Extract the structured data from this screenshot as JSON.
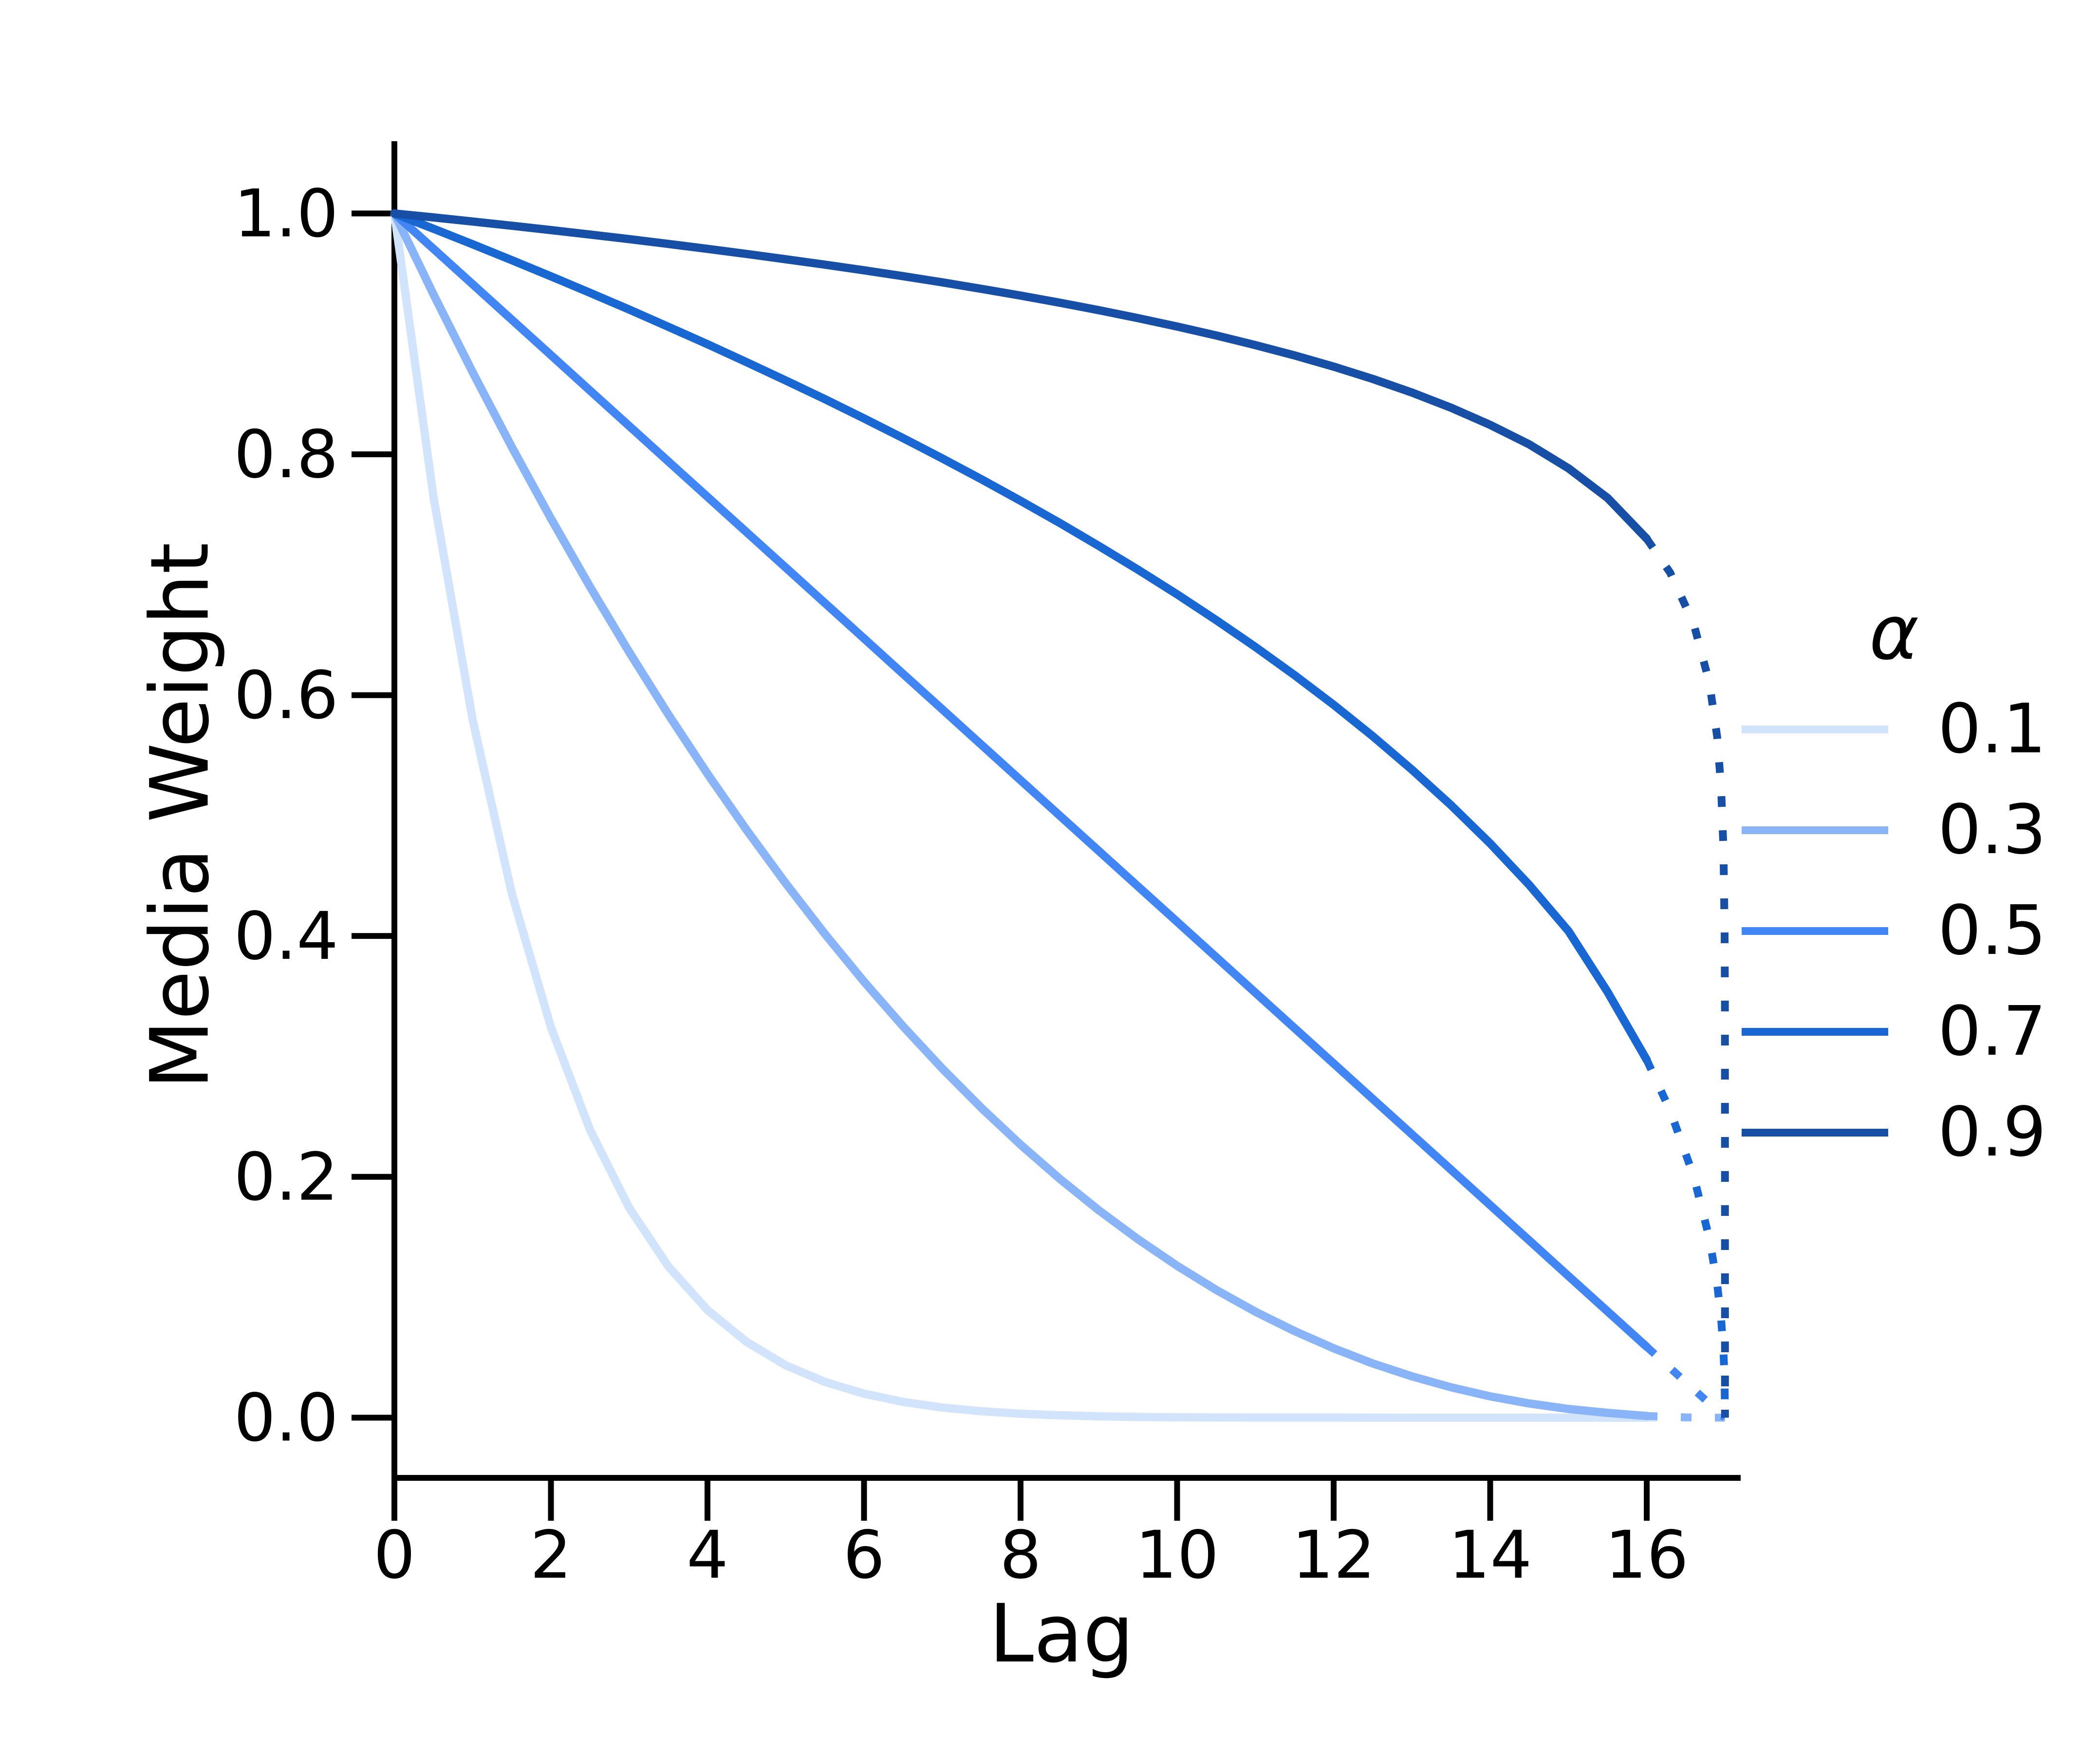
{
  "chart_data": {
    "type": "line",
    "title": "",
    "xlabel": "Lag",
    "ylabel": "Media Weight",
    "xlim": [
      0,
      17.2
    ],
    "ylim": [
      -0.05,
      1.06
    ],
    "grid": false,
    "x_ticks": [
      0,
      2,
      4,
      6,
      8,
      10,
      12,
      14,
      16
    ],
    "x_tick_labels": [
      "0",
      "2",
      "4",
      "6",
      "8",
      "10",
      "12",
      "14",
      "16"
    ],
    "y_ticks": [
      0.0,
      0.2,
      0.4,
      0.6,
      0.8,
      1.0
    ],
    "y_tick_labels": [
      "0.0",
      "0.2",
      "0.4",
      "0.6",
      "0.8",
      "1.0"
    ],
    "legend": {
      "title": "α",
      "position": "right"
    },
    "series": [
      {
        "name": "alpha-0.1",
        "label": "0.1",
        "color": "#d2e3fc",
        "solid": [
          [
            0,
            1
          ],
          [
            0.5,
            0.7644
          ],
          [
            1,
            0.5795
          ],
          [
            1.5,
            0.4355
          ],
          [
            2,
            0.3242
          ],
          [
            2.5,
            0.2389
          ],
          [
            3,
            0.1742
          ],
          [
            3.5,
            0.1256
          ],
          [
            4,
            0.0894
          ],
          [
            4.5,
            0.0629
          ],
          [
            5,
            0.0435
          ],
          [
            5.5,
            0.0297
          ],
          [
            6,
            0.0199
          ],
          [
            6.5,
            0.0131
          ],
          [
            7,
            0.0084
          ],
          [
            7.5,
            0.0053
          ],
          [
            8,
            0.0033
          ],
          [
            8.5,
            0.002
          ],
          [
            9,
            0.0011
          ],
          [
            9.5,
            0.0006
          ],
          [
            10,
            0.0003
          ],
          [
            10.5,
            0.0002
          ],
          [
            11,
            0.0001
          ],
          [
            12,
            0.0001
          ],
          [
            13,
            0
          ],
          [
            14,
            0
          ],
          [
            15,
            0
          ],
          [
            16,
            0
          ]
        ],
        "dashed": [
          [
            16,
            0
          ],
          [
            16.5,
            0
          ],
          [
            17,
            0
          ]
        ]
      },
      {
        "name": "alpha-0.3",
        "label": "0.3",
        "color": "#8ab4f8",
        "solid": [
          [
            0,
            1
          ],
          [
            0.5,
            0.9327
          ],
          [
            1,
            0.8681
          ],
          [
            1.5,
            0.8061
          ],
          [
            2,
            0.7467
          ],
          [
            2.5,
            0.6899
          ],
          [
            3,
            0.6357
          ],
          [
            3.5,
            0.584
          ],
          [
            4,
            0.5347
          ],
          [
            4.5,
            0.488
          ],
          [
            5,
            0.4437
          ],
          [
            5.5,
            0.4017
          ],
          [
            6,
            0.3621
          ],
          [
            6.5,
            0.3249
          ],
          [
            7,
            0.2899
          ],
          [
            7.5,
            0.2572
          ],
          [
            8,
            0.2267
          ],
          [
            8.5,
            0.1984
          ],
          [
            9,
            0.1722
          ],
          [
            9.5,
            0.1482
          ],
          [
            10,
            0.1261
          ],
          [
            10.5,
            0.1061
          ],
          [
            11,
            0.088
          ],
          [
            11.5,
            0.0719
          ],
          [
            12,
            0.0576
          ],
          [
            12.5,
            0.045
          ],
          [
            13,
            0.0343
          ],
          [
            13.5,
            0.0252
          ],
          [
            14,
            0.0177
          ],
          [
            14.5,
            0.0118
          ],
          [
            15,
            0.0072
          ],
          [
            15.5,
            0.004
          ],
          [
            16,
            0.0014
          ]
        ],
        "dashed": [
          [
            16,
            0.0014
          ],
          [
            16.5,
            0.0003
          ],
          [
            17,
            0
          ]
        ]
      },
      {
        "name": "alpha-0.5",
        "label": "0.5",
        "color": "#4285f4",
        "solid": [
          [
            0,
            1
          ],
          [
            0.5,
            0.9706
          ],
          [
            1,
            0.9412
          ],
          [
            1.5,
            0.9118
          ],
          [
            2,
            0.8824
          ],
          [
            2.5,
            0.8529
          ],
          [
            3,
            0.8235
          ],
          [
            3.5,
            0.7941
          ],
          [
            4,
            0.7647
          ],
          [
            4.5,
            0.7353
          ],
          [
            5,
            0.7059
          ],
          [
            5.5,
            0.6765
          ],
          [
            6,
            0.6471
          ],
          [
            6.5,
            0.6176
          ],
          [
            7,
            0.5882
          ],
          [
            7.5,
            0.5588
          ],
          [
            8,
            0.5294
          ],
          [
            8.5,
            0.5
          ],
          [
            9,
            0.4706
          ],
          [
            9.5,
            0.4412
          ],
          [
            10,
            0.4118
          ],
          [
            10.5,
            0.3824
          ],
          [
            11,
            0.3529
          ],
          [
            11.5,
            0.3235
          ],
          [
            12,
            0.2941
          ],
          [
            12.5,
            0.2647
          ],
          [
            13,
            0.2353
          ],
          [
            13.5,
            0.2059
          ],
          [
            14,
            0.1765
          ],
          [
            14.5,
            0.1471
          ],
          [
            15,
            0.1176
          ],
          [
            15.5,
            0.0882
          ],
          [
            16,
            0.0588
          ]
        ],
        "dashed": [
          [
            16,
            0.0588
          ],
          [
            16.3,
            0.0412
          ],
          [
            16.6,
            0.0235
          ],
          [
            16.9,
            0.0059
          ],
          [
            17,
            0
          ]
        ]
      },
      {
        "name": "alpha-0.7",
        "label": "0.7",
        "color": "#1967d2",
        "solid": [
          [
            0,
            1
          ],
          [
            0.5,
            0.9873
          ],
          [
            1,
            0.9744
          ],
          [
            1.5,
            0.9612
          ],
          [
            2,
            0.9478
          ],
          [
            2.5,
            0.9341
          ],
          [
            3,
            0.9202
          ],
          [
            3.5,
            0.9059
          ],
          [
            4,
            0.8914
          ],
          [
            4.5,
            0.8765
          ],
          [
            5,
            0.8613
          ],
          [
            5.5,
            0.8458
          ],
          [
            6,
            0.8298
          ],
          [
            6.5,
            0.8134
          ],
          [
            7,
            0.7966
          ],
          [
            7.5,
            0.7793
          ],
          [
            8,
            0.7614
          ],
          [
            8.5,
            0.743
          ],
          [
            9,
            0.7239
          ],
          [
            9.5,
            0.7042
          ],
          [
            10,
            0.6837
          ],
          [
            10.5,
            0.6623
          ],
          [
            11,
            0.64
          ],
          [
            11.5,
            0.6166
          ],
          [
            12,
            0.592
          ],
          [
            12.5,
            0.5659
          ],
          [
            13,
            0.5381
          ],
          [
            13.5,
            0.5086
          ],
          [
            14,
            0.4768
          ],
          [
            14.5,
            0.4423
          ],
          [
            15,
            0.4041
          ],
          [
            15.5,
            0.3535
          ],
          [
            16,
            0.2971
          ]
        ],
        "dashed": [
          [
            16,
            0.2971
          ],
          [
            16.3,
            0.2549
          ],
          [
            16.6,
            0.2005
          ],
          [
            16.8,
            0.149
          ],
          [
            16.9,
            0.1107
          ],
          [
            16.95,
            0.0822
          ],
          [
            16.98,
            0.0555
          ],
          [
            16.995,
            0.0306
          ],
          [
            17,
            0
          ]
        ]
      },
      {
        "name": "alpha-0.9",
        "label": "0.9",
        "color": "#174ea6",
        "solid": [
          [
            0,
            1
          ],
          [
            0.5,
            0.9967
          ],
          [
            1,
            0.9933
          ],
          [
            1.5,
            0.9898
          ],
          [
            2,
            0.9862
          ],
          [
            2.5,
            0.9825
          ],
          [
            3,
            0.9787
          ],
          [
            3.5,
            0.9747
          ],
          [
            4,
            0.9706
          ],
          [
            4.5,
            0.9664
          ],
          [
            5,
            0.962
          ],
          [
            5.5,
            0.9575
          ],
          [
            6,
            0.9528
          ],
          [
            6.5,
            0.9479
          ],
          [
            7,
            0.9428
          ],
          [
            7.5,
            0.9374
          ],
          [
            8,
            0.9318
          ],
          [
            8.5,
            0.9259
          ],
          [
            9,
            0.9197
          ],
          [
            9.5,
            0.9131
          ],
          [
            10,
            0.9061
          ],
          [
            10.5,
            0.8987
          ],
          [
            11,
            0.8907
          ],
          [
            11.5,
            0.8821
          ],
          [
            12,
            0.8728
          ],
          [
            12.5,
            0.8626
          ],
          [
            13,
            0.8513
          ],
          [
            13.5,
            0.8387
          ],
          [
            14,
            0.8244
          ],
          [
            14.5,
            0.8082
          ],
          [
            15,
            0.7884
          ],
          [
            15.5,
            0.7637
          ],
          [
            16,
            0.7299
          ]
        ],
        "dashed": [
          [
            16,
            0.7299
          ],
          [
            16.3,
            0.7016
          ],
          [
            16.6,
            0.6593
          ],
          [
            16.8,
            0.6104
          ],
          [
            16.9,
            0.5652
          ],
          [
            16.95,
            0.5233
          ],
          [
            16.98,
            0.4726
          ],
          [
            16.995,
            0.405
          ],
          [
            16.999,
            0.339
          ],
          [
            17,
            0
          ]
        ]
      }
    ]
  }
}
